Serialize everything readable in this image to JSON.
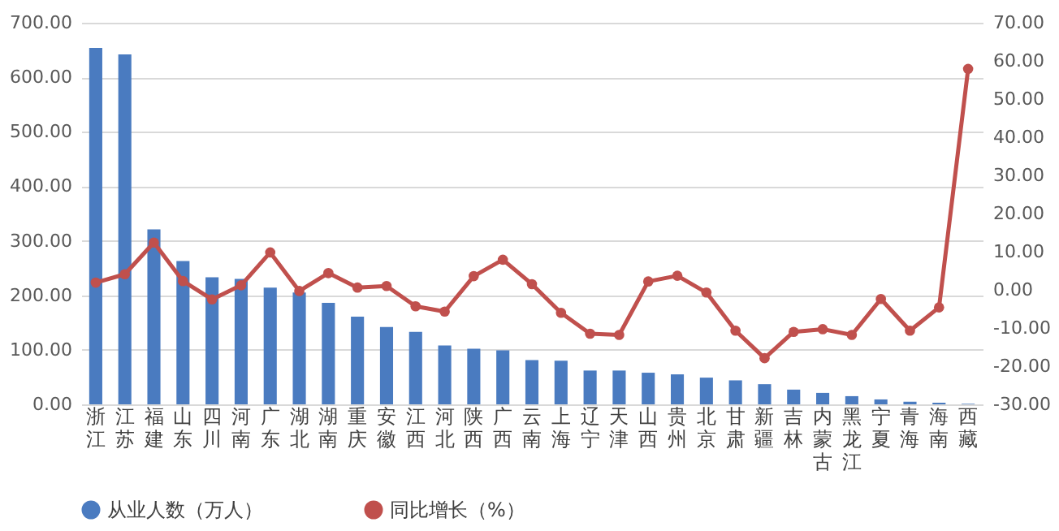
{
  "chart_data": {
    "type": "bar",
    "categories": [
      "浙江",
      "江苏",
      "福建",
      "山东",
      "四川",
      "河南",
      "广东",
      "湖北",
      "湖南",
      "重庆",
      "安徽",
      "江西",
      "河北",
      "陕西",
      "广西",
      "云南",
      "上海",
      "辽宁",
      "天津",
      "山西",
      "贵州",
      "北京",
      "甘肃",
      "新疆",
      "吉林",
      "内蒙古",
      "黑龙江",
      "宁夏",
      "青海",
      "海南",
      "西藏"
    ],
    "series": [
      {
        "name": "从业人数（万人）",
        "color": "#4a7bc0",
        "values": [
          654,
          642,
          321,
          263,
          233,
          230,
          214,
          205,
          186,
          161,
          142,
          133,
          108,
          102,
          99,
          81,
          80,
          62,
          62,
          58,
          55,
          49,
          44,
          37,
          27,
          21,
          15,
          9,
          5,
          3,
          1
        ]
      },
      {
        "name": "同比增长（%）",
        "type": "line",
        "axis": "y2",
        "color": "#c0504d",
        "values": [
          1.9,
          4.1,
          12.4,
          2.3,
          -2.5,
          1.2,
          9.8,
          -0.3,
          4.4,
          0.6,
          1.0,
          -4.3,
          -5.7,
          3.6,
          7.9,
          1.5,
          -6.0,
          -11.5,
          -11.8,
          2.2,
          3.7,
          -0.7,
          -10.7,
          -17.9,
          -11.0,
          -10.3,
          -11.8,
          -2.4,
          -10.7,
          -4.6,
          57.9
        ]
      }
    ],
    "ylim": [
      0,
      700
    ],
    "yticks": [
      {
        "value": 0,
        "label": "0.00"
      },
      {
        "value": 100,
        "label": "100.00"
      },
      {
        "value": 200,
        "label": "200.00"
      },
      {
        "value": 300,
        "label": "300.00"
      },
      {
        "value": 400,
        "label": "400.00"
      },
      {
        "value": 500,
        "label": "500.00"
      },
      {
        "value": 600,
        "label": "600.00"
      },
      {
        "value": 700,
        "label": "700.00"
      }
    ],
    "y2lim": [
      -30,
      70
    ],
    "y2ticks": [
      {
        "value": -30,
        "label": "-30.00"
      },
      {
        "value": -20,
        "label": "-20.00"
      },
      {
        "value": -10,
        "label": "-10.00"
      },
      {
        "value": 0,
        "label": "0.00"
      },
      {
        "value": 10,
        "label": "10.00"
      },
      {
        "value": 20,
        "label": "20.00"
      },
      {
        "value": 30,
        "label": "30.00"
      },
      {
        "value": 40,
        "label": "40.00"
      },
      {
        "value": 50,
        "label": "50.00"
      },
      {
        "value": 60,
        "label": "60.00"
      },
      {
        "value": 70,
        "label": "70.00"
      }
    ],
    "grid": "y",
    "legend": "bottom",
    "marker": "circle"
  }
}
